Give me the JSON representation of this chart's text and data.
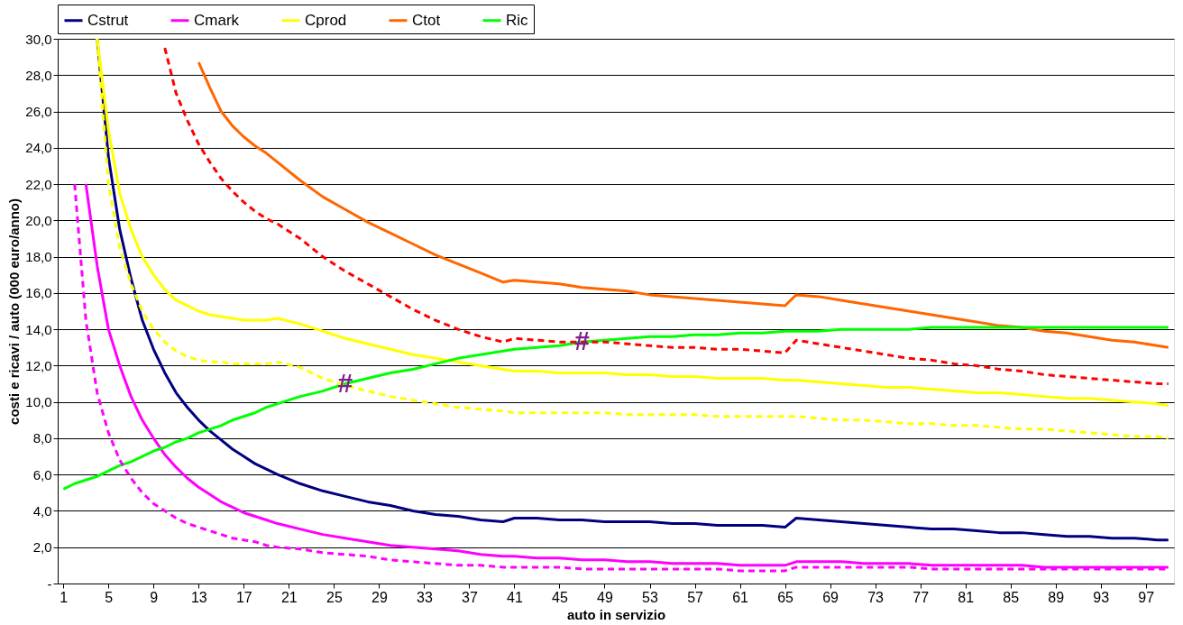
{
  "chart_data": {
    "type": "line",
    "xlabel": "auto in servizio",
    "ylabel": "costi e ricavi / auto (000 euro/anno)",
    "x": [
      1,
      2,
      3,
      4,
      5,
      6,
      7,
      8,
      9,
      10,
      11,
      12,
      13,
      14,
      15,
      16,
      17,
      18,
      19,
      20,
      22,
      24,
      26,
      28,
      30,
      32,
      34,
      36,
      38,
      40,
      41,
      43,
      45,
      47,
      49,
      51,
      53,
      55,
      57,
      59,
      61,
      63,
      65,
      66,
      68,
      70,
      72,
      74,
      76,
      78,
      80,
      82,
      84,
      86,
      88,
      90,
      92,
      94,
      96,
      98,
      99
    ],
    "xlim": [
      0.5,
      99.5
    ],
    "xticks": [
      1,
      5,
      9,
      13,
      17,
      21,
      25,
      29,
      33,
      37,
      41,
      45,
      49,
      53,
      57,
      61,
      65,
      69,
      73,
      77,
      81,
      85,
      89,
      93,
      97
    ],
    "ylim": [
      0,
      30
    ],
    "yticks": [
      {
        "value": 0,
        "label": "-"
      },
      {
        "value": 2,
        "label": "2,0"
      },
      {
        "value": 4,
        "label": "4,0"
      },
      {
        "value": 6,
        "label": "6,0"
      },
      {
        "value": 8,
        "label": "8,0"
      },
      {
        "value": 10,
        "label": "10,0"
      },
      {
        "value": 12,
        "label": "12,0"
      },
      {
        "value": 14,
        "label": "14,0"
      },
      {
        "value": 16,
        "label": "16,0"
      },
      {
        "value": 18,
        "label": "18,0"
      },
      {
        "value": 20,
        "label": "20,0"
      },
      {
        "value": 22,
        "label": "22,0"
      },
      {
        "value": 24,
        "label": "24,0"
      },
      {
        "value": 26,
        "label": "26,0"
      },
      {
        "value": 28,
        "label": "28,0"
      },
      {
        "value": 30,
        "label": "30,0"
      }
    ],
    "grid": "y",
    "legend": "top left",
    "marker": "none",
    "series": [
      {
        "name": "Cstrut",
        "color": "#000080",
        "line_style": "solid",
        "values": [
          null,
          null,
          null,
          30,
          23.5,
          19.5,
          16.8,
          14.5,
          12.9,
          11.6,
          10.5,
          9.7,
          9.0,
          8.4,
          7.9,
          7.4,
          7.0,
          6.6,
          6.3,
          6.0,
          5.5,
          5.1,
          4.8,
          4.5,
          4.3,
          4.0,
          3.8,
          3.7,
          3.5,
          3.4,
          3.6,
          3.6,
          3.5,
          3.5,
          3.4,
          3.4,
          3.4,
          3.3,
          3.3,
          3.2,
          3.2,
          3.2,
          3.1,
          3.6,
          3.5,
          3.4,
          3.3,
          3.2,
          3.1,
          3.0,
          3.0,
          2.9,
          2.8,
          2.8,
          2.7,
          2.6,
          2.6,
          2.5,
          2.5,
          2.4,
          2.4
        ]
      },
      {
        "name": "Cmark",
        "color": "#ff00ff",
        "line_style": "solid",
        "values": [
          null,
          null,
          22,
          17.5,
          14,
          12,
          10.3,
          9,
          8,
          7.1,
          6.4,
          5.8,
          5.3,
          4.9,
          4.5,
          4.2,
          3.9,
          3.7,
          3.5,
          3.3,
          3.0,
          2.7,
          2.5,
          2.3,
          2.1,
          2.0,
          1.9,
          1.8,
          1.6,
          1.5,
          1.5,
          1.4,
          1.4,
          1.3,
          1.3,
          1.2,
          1.2,
          1.1,
          1.1,
          1.1,
          1.0,
          1.0,
          1.0,
          1.2,
          1.2,
          1.2,
          1.1,
          1.1,
          1.1,
          1.0,
          1.0,
          1.0,
          1.0,
          1.0,
          0.9,
          0.9,
          0.9,
          0.9,
          0.9,
          0.9,
          0.9
        ]
      },
      {
        "name": "Cprod",
        "color": "#ffff00",
        "line_style": "solid",
        "values": [
          null,
          null,
          null,
          30,
          25,
          21.5,
          19.5,
          18.0,
          17.0,
          16.2,
          15.6,
          15.3,
          15.0,
          14.8,
          14.7,
          14.6,
          14.5,
          14.5,
          14.5,
          14.6,
          14.3,
          13.9,
          13.5,
          13.2,
          12.9,
          12.6,
          12.4,
          12.2,
          12.0,
          11.8,
          11.7,
          11.7,
          11.6,
          11.6,
          11.6,
          11.5,
          11.5,
          11.4,
          11.4,
          11.3,
          11.3,
          11.3,
          11.2,
          11.2,
          11.1,
          11.0,
          10.9,
          10.8,
          10.8,
          10.7,
          10.6,
          10.5,
          10.5,
          10.4,
          10.3,
          10.2,
          10.2,
          10.1,
          10.0,
          9.9,
          9.8
        ]
      },
      {
        "name": "Ctot",
        "color": "#ff6600",
        "line_style": "solid",
        "values": [
          null,
          null,
          null,
          null,
          null,
          null,
          null,
          null,
          null,
          null,
          null,
          null,
          28.7,
          27.3,
          26.0,
          25.2,
          24.6,
          24.1,
          23.7,
          23.2,
          22.2,
          21.3,
          20.6,
          19.9,
          19.3,
          18.7,
          18.1,
          17.6,
          17.1,
          16.6,
          16.7,
          16.6,
          16.5,
          16.3,
          16.2,
          16.1,
          15.9,
          15.8,
          15.7,
          15.6,
          15.5,
          15.4,
          15.3,
          15.9,
          15.8,
          15.6,
          15.4,
          15.2,
          15.0,
          14.8,
          14.6,
          14.4,
          14.2,
          14.1,
          13.9,
          13.8,
          13.6,
          13.4,
          13.3,
          13.1,
          13.0
        ]
      },
      {
        "name": "Ric",
        "color": "#00ff00",
        "line_style": "solid",
        "values": [
          5.2,
          5.5,
          5.7,
          5.9,
          6.2,
          6.5,
          6.7,
          7.0,
          7.3,
          7.5,
          7.8,
          8.0,
          8.3,
          8.5,
          8.7,
          9.0,
          9.2,
          9.4,
          9.7,
          9.9,
          10.3,
          10.6,
          11.0,
          11.3,
          11.6,
          11.8,
          12.1,
          12.4,
          12.6,
          12.8,
          12.9,
          13.0,
          13.1,
          13.3,
          13.4,
          13.5,
          13.6,
          13.6,
          13.7,
          13.7,
          13.8,
          13.8,
          13.9,
          13.9,
          13.9,
          14.0,
          14.0,
          14.0,
          14.0,
          14.1,
          14.1,
          14.1,
          14.1,
          14.1,
          14.1,
          14.1,
          14.1,
          14.1,
          14.1,
          14.1,
          14.1
        ]
      },
      {
        "color": "#ff00ff",
        "line_style": "dashed",
        "values": [
          null,
          22,
          14.5,
          10.5,
          8.3,
          6.8,
          5.8,
          5.0,
          4.4,
          4.0,
          3.6,
          3.3,
          3.1,
          2.9,
          2.7,
          2.5,
          2.4,
          2.3,
          2.1,
          2.0,
          1.9,
          1.7,
          1.6,
          1.5,
          1.3,
          1.2,
          1.1,
          1.0,
          1.0,
          0.9,
          0.9,
          0.9,
          0.9,
          0.8,
          0.8,
          0.8,
          0.8,
          0.8,
          0.8,
          0.8,
          0.7,
          0.7,
          0.7,
          0.9,
          0.9,
          0.9,
          0.9,
          0.9,
          0.9,
          0.8,
          0.8,
          0.8,
          0.8,
          0.8,
          0.8,
          0.8,
          0.8,
          0.8,
          0.8,
          0.8,
          0.8
        ]
      },
      {
        "color": "#ffff00",
        "line_style": "dashed",
        "values": [
          null,
          null,
          null,
          30,
          22,
          18.5,
          16.5,
          15.0,
          14.0,
          13.3,
          12.8,
          12.5,
          12.3,
          12.2,
          12.2,
          12.1,
          12.1,
          12.1,
          12.1,
          12.2,
          11.9,
          11.3,
          10.9,
          10.6,
          10.3,
          10.1,
          9.9,
          9.7,
          9.6,
          9.5,
          9.4,
          9.4,
          9.4,
          9.4,
          9.4,
          9.3,
          9.3,
          9.3,
          9.3,
          9.2,
          9.2,
          9.2,
          9.2,
          9.2,
          9.1,
          9.0,
          9.0,
          8.9,
          8.8,
          8.8,
          8.7,
          8.7,
          8.6,
          8.5,
          8.5,
          8.4,
          8.3,
          8.2,
          8.1,
          8.1,
          8.0
        ]
      },
      {
        "color": "#ff0000",
        "line_style": "dashed",
        "values": [
          null,
          null,
          null,
          null,
          null,
          null,
          null,
          null,
          null,
          29.5,
          27.0,
          25.5,
          24.2,
          23.2,
          22.3,
          21.6,
          21.0,
          20.5,
          20.1,
          19.8,
          19.0,
          18.0,
          17.2,
          16.5,
          15.8,
          15.1,
          14.5,
          14.0,
          13.6,
          13.3,
          13.5,
          13.4,
          13.3,
          13.3,
          13.3,
          13.2,
          13.1,
          13.0,
          13.0,
          12.9,
          12.9,
          12.8,
          12.7,
          13.4,
          13.2,
          13.0,
          12.8,
          12.6,
          12.4,
          12.3,
          12.1,
          12.0,
          11.8,
          11.7,
          11.5,
          11.4,
          11.3,
          11.2,
          11.1,
          11.0,
          11.0
        ]
      }
    ],
    "annotations": [
      {
        "text": "#",
        "x": 26,
        "y": 11.0
      },
      {
        "text": "#",
        "x": 47,
        "y": 13.3
      }
    ]
  }
}
